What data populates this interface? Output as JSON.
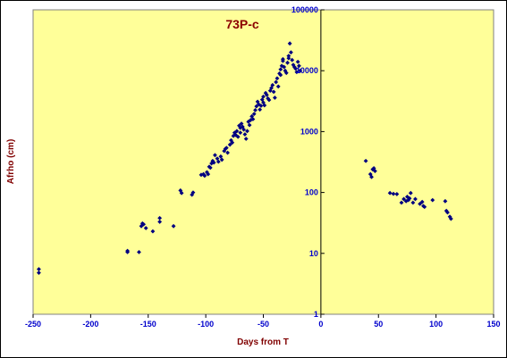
{
  "chart_data": {
    "type": "scatter",
    "title": "73P-c",
    "xlabel": "Days from T",
    "ylabel": "Afrho (cm)",
    "xlim": [
      -250,
      150
    ],
    "ylim": [
      1,
      100000
    ],
    "yscale": "log",
    "x_ticks": [
      "-250",
      "-200",
      "-150",
      "-100",
      "-50",
      "0",
      "50",
      "100",
      "150"
    ],
    "y_ticks": [
      "1",
      "10",
      "100",
      "1000",
      "10000",
      "100000"
    ],
    "grid": false,
    "plot_background": "#ffff99",
    "marker_color": "#000080",
    "vertical_reference_line_x": 0,
    "points": [
      [
        -245,
        5.5
      ],
      [
        -245,
        4.8
      ],
      [
        -168,
        11
      ],
      [
        -168,
        10.5
      ],
      [
        -158,
        10.5
      ],
      [
        -156,
        28
      ],
      [
        -155,
        31
      ],
      [
        -154,
        30
      ],
      [
        -152,
        26
      ],
      [
        -146,
        23
      ],
      [
        -140,
        33
      ],
      [
        -140,
        38
      ],
      [
        -128,
        28
      ],
      [
        -122,
        108
      ],
      [
        -121,
        98
      ],
      [
        -112,
        92
      ],
      [
        -111,
        100
      ],
      [
        -104,
        195
      ],
      [
        -102,
        200
      ],
      [
        -101,
        188
      ],
      [
        -99,
        215
      ],
      [
        -98,
        200
      ],
      [
        -97,
        265
      ],
      [
        -96,
        255
      ],
      [
        -95,
        300
      ],
      [
        -94,
        330
      ],
      [
        -93,
        310
      ],
      [
        -92,
        410
      ],
      [
        -90,
        360
      ],
      [
        -89,
        320
      ],
      [
        -87,
        390
      ],
      [
        -86,
        345
      ],
      [
        -84,
        480
      ],
      [
        -83,
        520
      ],
      [
        -82,
        540
      ],
      [
        -81,
        450
      ],
      [
        -79,
        610
      ],
      [
        -78,
        720
      ],
      [
        -77,
        660
      ],
      [
        -76,
        850
      ],
      [
        -75,
        960
      ],
      [
        -74,
        880
      ],
      [
        -73,
        1020
      ],
      [
        -72,
        820
      ],
      [
        -71,
        1250
      ],
      [
        -70,
        1150
      ],
      [
        -70,
        960
      ],
      [
        -69,
        1350
      ],
      [
        -68,
        1200
      ],
      [
        -67,
        1080
      ],
      [
        -66,
        900
      ],
      [
        -65,
        760
      ],
      [
        -64,
        1020
      ],
      [
        -63,
        1450
      ],
      [
        -62,
        1280
      ],
      [
        -61,
        1550
      ],
      [
        -60,
        1780
      ],
      [
        -59,
        1600
      ],
      [
        -58,
        1950
      ],
      [
        -57,
        2250
      ],
      [
        -56,
        2600
      ],
      [
        -55,
        3100
      ],
      [
        -54,
        2800
      ],
      [
        -53,
        2300
      ],
      [
        -52,
        2650
      ],
      [
        -51,
        3350
      ],
      [
        -50,
        3750
      ],
      [
        -50,
        3000
      ],
      [
        -49,
        2700
      ],
      [
        -48,
        4300
      ],
      [
        -47,
        4000
      ],
      [
        -46,
        3500
      ],
      [
        -45,
        3300
      ],
      [
        -44,
        4700
      ],
      [
        -43,
        5200
      ],
      [
        -42,
        5800
      ],
      [
        -41,
        4500
      ],
      [
        -40,
        3600
      ],
      [
        -39,
        6500
      ],
      [
        -38,
        7500
      ],
      [
        -37,
        5500
      ],
      [
        -36,
        9000
      ],
      [
        -35,
        10500
      ],
      [
        -35,
        8500
      ],
      [
        -34,
        12000
      ],
      [
        -33,
        14500
      ],
      [
        -33,
        15500
      ],
      [
        -32,
        11500
      ],
      [
        -31,
        10000
      ],
      [
        -30,
        9200
      ],
      [
        -29,
        13500
      ],
      [
        -28,
        16000
      ],
      [
        -28,
        17500
      ],
      [
        -27,
        28000
      ],
      [
        -26,
        20000
      ],
      [
        -25,
        15000
      ],
      [
        -24,
        12500
      ],
      [
        -23,
        11500
      ],
      [
        -22,
        10800
      ],
      [
        -21,
        9500
      ],
      [
        -20,
        14000
      ],
      [
        -19,
        12000
      ],
      [
        -18,
        10000
      ],
      [
        39,
        330
      ],
      [
        43,
        200
      ],
      [
        44,
        180
      ],
      [
        45,
        240
      ],
      [
        46,
        250
      ],
      [
        47,
        225
      ],
      [
        60,
        98
      ],
      [
        63,
        95
      ],
      [
        66,
        94
      ],
      [
        70,
        68
      ],
      [
        72,
        78
      ],
      [
        74,
        72
      ],
      [
        75,
        85
      ],
      [
        76,
        75
      ],
      [
        77,
        80
      ],
      [
        78,
        98
      ],
      [
        80,
        68
      ],
      [
        82,
        78
      ],
      [
        86,
        65
      ],
      [
        88,
        70
      ],
      [
        89,
        60
      ],
      [
        90,
        58
      ],
      [
        97,
        75
      ],
      [
        108,
        72
      ],
      [
        109,
        50
      ],
      [
        110,
        47
      ],
      [
        112,
        40
      ],
      [
        113,
        37
      ]
    ]
  }
}
